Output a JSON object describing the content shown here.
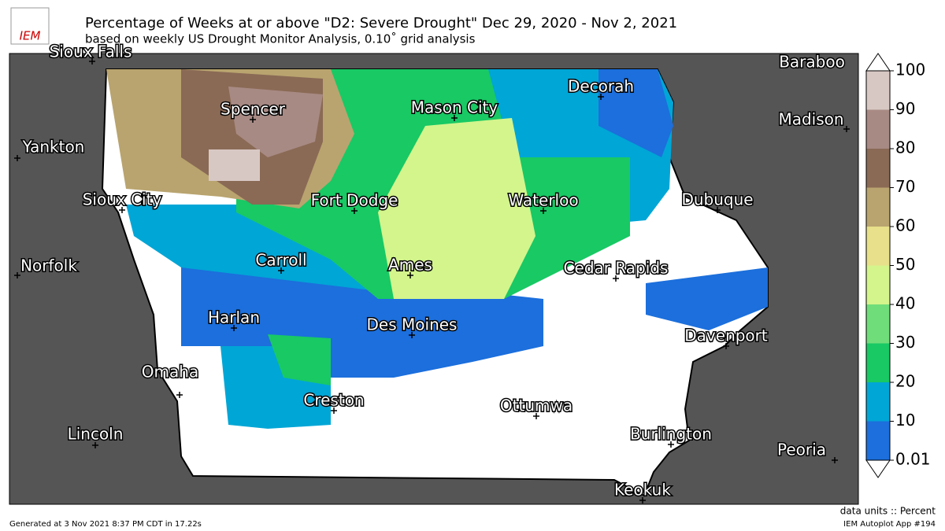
{
  "header": {
    "logo": "IEM",
    "title": "Percentage of Weeks at or above \"D2: Severe Drought\" Dec 29, 2020 - Nov 2, 2021",
    "subtitle": "based on weekly US Drought Monitor Analysis, 0.10˚ grid analysis"
  },
  "cities": [
    "Sioux Falls",
    "Baraboo",
    "Decorah",
    "Spencer",
    "Mason City",
    "Madison",
    "Yankton",
    "Sioux City",
    "Fort Dodge",
    "Waterloo",
    "Dubuque",
    "Norfolk",
    "Carroll",
    "Ames",
    "Cedar Rapids",
    "Harlan",
    "Des Moines",
    "Davenport",
    "Omaha",
    "Creston",
    "Ottumwa",
    "Lincoln",
    "Burlington",
    "Peoria",
    "Keokuk"
  ],
  "colorbar": {
    "levels": [
      0.01,
      10,
      20,
      30,
      40,
      50,
      60,
      70,
      80,
      90,
      100
    ],
    "colors": [
      "#1c6fdc",
      "#00a6d6",
      "#18c964",
      "#6fdd7a",
      "#d3f58c",
      "#e8e08a",
      "#b9a46f",
      "#8a6a55",
      "#a88a84",
      "#d8c8c4"
    ],
    "units_label": "data units :: Percent"
  },
  "footer": {
    "generated": "Generated at 3 Nov 2021 8:37 PM CDT in 17.22s",
    "app": "IEM Autoplot App #194"
  }
}
